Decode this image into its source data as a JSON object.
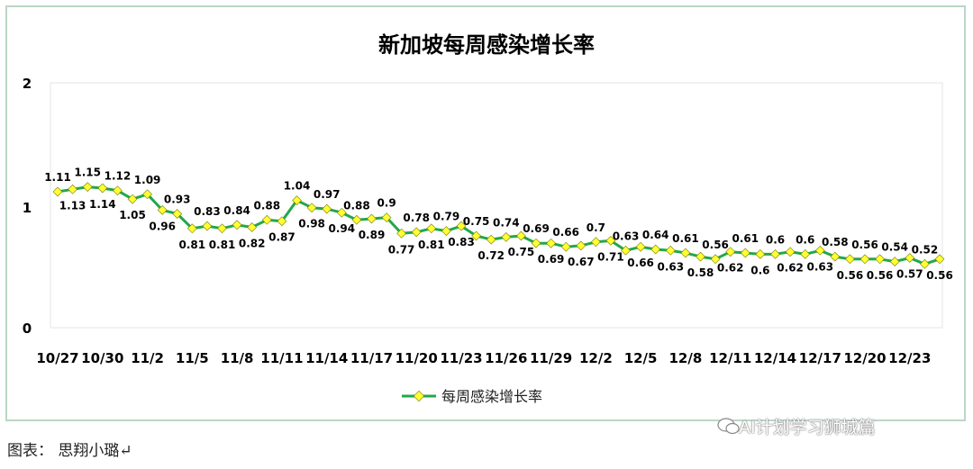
{
  "chart_data": {
    "type": "line",
    "title": "新加坡每周感染增长率",
    "ylim": [
      0,
      2
    ],
    "yticks": [
      "0",
      "1",
      "2"
    ],
    "grid": false,
    "legend_placement": "bottom",
    "x_tick_labels": [
      "10/27",
      "10/30",
      "11/2",
      "11/5",
      "11/8",
      "11/11",
      "11/14",
      "11/17",
      "11/20",
      "11/23",
      "11/26",
      "11/29",
      "12/2",
      "12/5",
      "12/8",
      "12/11",
      "12/14",
      "12/17",
      "12/20",
      "12/23"
    ],
    "series": [
      {
        "name": "每周感染增长率",
        "color": "#22a84a",
        "marker_color": "#ffff33",
        "values": [
          1.11,
          1.13,
          1.15,
          1.14,
          1.12,
          1.05,
          1.09,
          0.96,
          0.93,
          0.81,
          0.83,
          0.81,
          0.84,
          0.82,
          0.88,
          0.87,
          1.04,
          0.98,
          0.97,
          0.94,
          0.88,
          0.89,
          0.9,
          0.77,
          0.78,
          0.81,
          0.79,
          0.83,
          0.75,
          0.72,
          0.74,
          0.75,
          0.69,
          0.69,
          0.66,
          0.67,
          0.7,
          0.71,
          0.63,
          0.66,
          0.64,
          0.63,
          0.61,
          0.58,
          0.56,
          0.62,
          0.61,
          0.6,
          0.6,
          0.62,
          0.6,
          0.63,
          0.58,
          0.56,
          0.56,
          0.56,
          0.54,
          0.57,
          0.52,
          0.56
        ]
      }
    ]
  },
  "caption": "图表： 思翔小璐↵",
  "watermark": "AI计划学习狮城篇"
}
